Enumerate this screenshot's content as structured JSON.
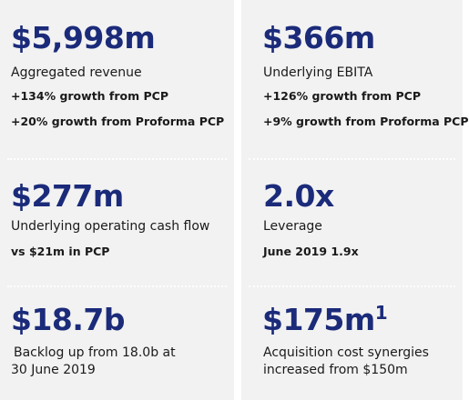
{
  "revenue": {
    "value": "$5,998m",
    "label": "Aggregated revenue",
    "line1": "+134% growth from PCP",
    "line2": "+20% growth from Proforma PCP"
  },
  "ebita": {
    "value": "$366m",
    "label": "Underlying EBITA",
    "line1": "+126% growth from PCP",
    "line2": "+9% growth from Proforma PCP"
  },
  "cashflow": {
    "value": "$277m",
    "label": "Underlying operating cash flow",
    "line1": "vs $21m in PCP"
  },
  "leverage": {
    "value": "2.0x",
    "label": "Leverage",
    "line1": "June 2019 1.9x"
  },
  "backlog": {
    "value": "$18.7b",
    "label_line1": "Backlog up from 18.0b at",
    "label_line2": "30 June 2019"
  },
  "synergies": {
    "value": "$175m",
    "footnote": "1",
    "label_line1": "Acquisition cost synergies",
    "label_line2": "increased from $150m"
  },
  "colors": {
    "accent": "#1b2b7a",
    "panel_bg": "#f2f2f2",
    "text": "#1a1a1a"
  }
}
